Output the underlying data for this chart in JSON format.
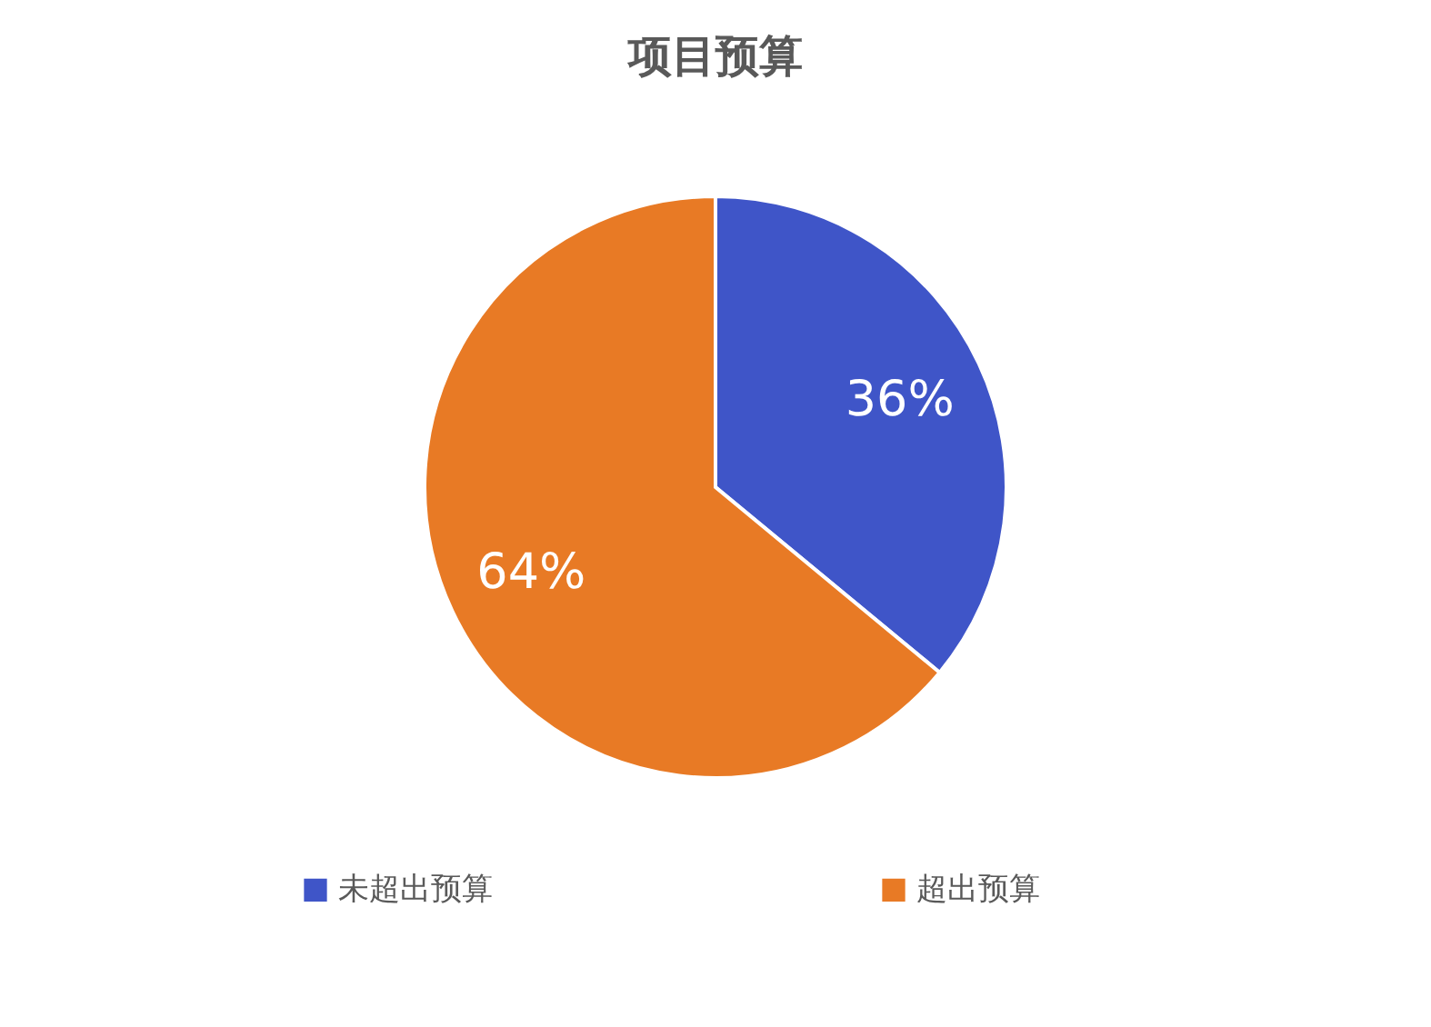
{
  "chart_data": {
    "type": "pie",
    "title": "项目预算",
    "categories": [
      "未超出预算",
      "超出预算"
    ],
    "values": [
      36,
      64
    ],
    "colors": [
      "#3f55c8",
      "#e87a25"
    ],
    "value_labels": [
      "36%",
      "64%"
    ],
    "legend": "bottom"
  }
}
